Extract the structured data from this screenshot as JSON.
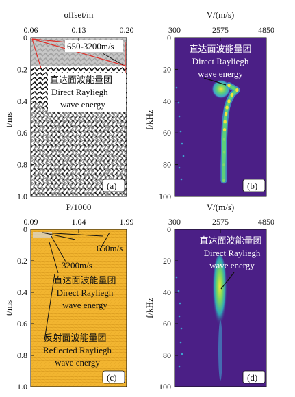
{
  "chart_data": [
    {
      "panel": "(a)",
      "type": "heatmap",
      "xlabel": "offset/m",
      "ylabel": "t/ms",
      "xlim": [
        0.06,
        0.2
      ],
      "ylim": [
        0,
        1.0
      ],
      "xticks": [
        "0.06",
        "0.13",
        "0.20"
      ],
      "yticks": [
        "0",
        "0.2",
        "0.4",
        "0.6",
        "0.8",
        "1.0"
      ],
      "annotations": [
        "650-3200m/s",
        "直达面波能量团",
        "Direct Rayliegh",
        "wave energy"
      ],
      "colors": {
        "background": "#ffffff",
        "wiggle": "#111111",
        "highlight": "#bdbdbd",
        "fan": "#e0302a"
      }
    },
    {
      "panel": "(b)",
      "type": "heatmap",
      "xlabel": "V/(m/s)",
      "ylabel": "f/kHz",
      "xlim": [
        300,
        4850
      ],
      "ylim": [
        0,
        100
      ],
      "xticks": [
        "300",
        "2575",
        "4850"
      ],
      "yticks": [
        "0",
        "20",
        "40",
        "60",
        "80",
        "100"
      ],
      "annotations": [
        "直达面波能量团",
        "Direct Rayliegh",
        "wave energy"
      ],
      "ridge": [
        {
          "f": 30,
          "v": 3000
        },
        {
          "f": 33,
          "v": 3400
        },
        {
          "f": 36,
          "v": 3150
        },
        {
          "f": 40,
          "v": 3000
        },
        {
          "f": 44,
          "v": 2900
        },
        {
          "f": 48,
          "v": 2850
        },
        {
          "f": 53,
          "v": 2800
        },
        {
          "f": 58,
          "v": 2780
        },
        {
          "f": 64,
          "v": 2760
        },
        {
          "f": 72,
          "v": 2760
        },
        {
          "f": 80,
          "v": 2740
        },
        {
          "f": 90,
          "v": 2740
        }
      ],
      "colors": {
        "background": "#4b1f86",
        "low": "#3fa0ce",
        "mid": "#5cd07a",
        "high": "#f4e33a"
      }
    },
    {
      "panel": "(c)",
      "type": "heatmap",
      "xlabel": "P/1000",
      "ylabel": "t/ms",
      "xlim": [
        0.09,
        1.99
      ],
      "ylim": [
        0,
        1.0
      ],
      "xticks": [
        "0.09",
        "1.04",
        "1.99"
      ],
      "yticks": [
        "0",
        "0.2",
        "0.4",
        "0.6",
        "0.8",
        "1.0"
      ],
      "annotations": [
        "650m/s",
        "3200m/s",
        "直达面波能量团",
        "Direct Rayliegh",
        "wave energy",
        "反射面波能量团",
        "Reflected Rayliegh",
        "wave energy"
      ],
      "colors": {
        "background": "#f2b530",
        "stripe": "#d89a1c"
      }
    },
    {
      "panel": "(d)",
      "type": "heatmap",
      "xlabel": "V/(m/s)",
      "ylabel": "f/kHz",
      "xlim": [
        300,
        4850
      ],
      "ylim": [
        0,
        100
      ],
      "xticks": [
        "300",
        "2575",
        "4850"
      ],
      "yticks": [
        "0",
        "20",
        "40",
        "60",
        "80",
        "100"
      ],
      "annotations": [
        "直达面波能量团",
        "Direct Rayliegh",
        "wave energy"
      ],
      "colors": {
        "background": "#4b1f86",
        "low": "#3fa0ce",
        "mid": "#5cd07a",
        "high": "#f4e33a"
      }
    }
  ],
  "panel_labels": [
    "(a)",
    "(b)",
    "(c)",
    "(d)"
  ]
}
